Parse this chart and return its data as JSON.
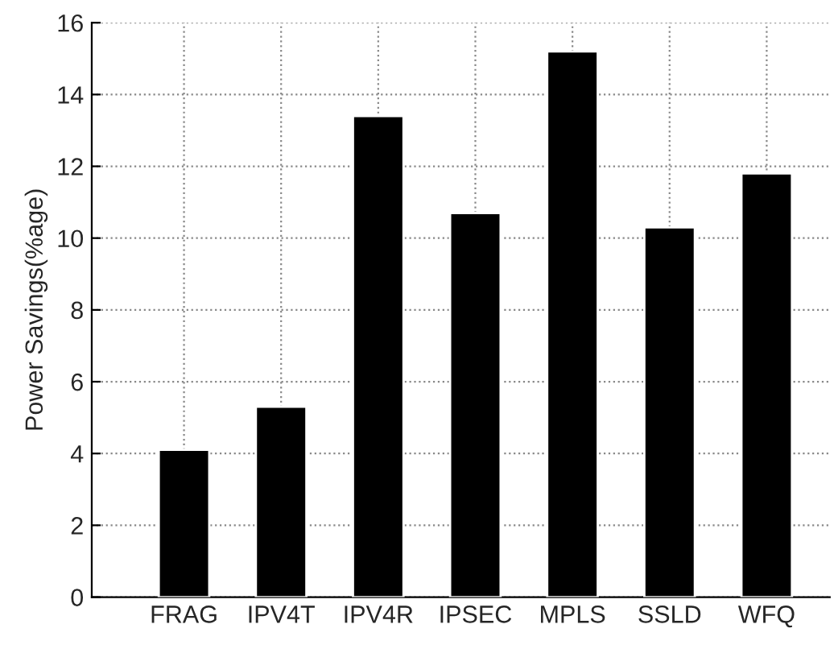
{
  "chart_data": {
    "type": "bar",
    "ylabel": "Power Savings(%age)",
    "categories": [
      "FRAG",
      "IPV4T",
      "IPV4R",
      "IPSEC",
      "MPLS",
      "SSLD",
      "WFQ"
    ],
    "values": [
      4.1,
      5.3,
      13.4,
      10.7,
      15.2,
      10.3,
      11.8
    ],
    "color": "#000000",
    "ylim": [
      0,
      16
    ],
    "yticks": [
      0,
      2,
      4,
      6,
      8,
      10,
      12,
      14,
      16
    ],
    "grid": true
  }
}
